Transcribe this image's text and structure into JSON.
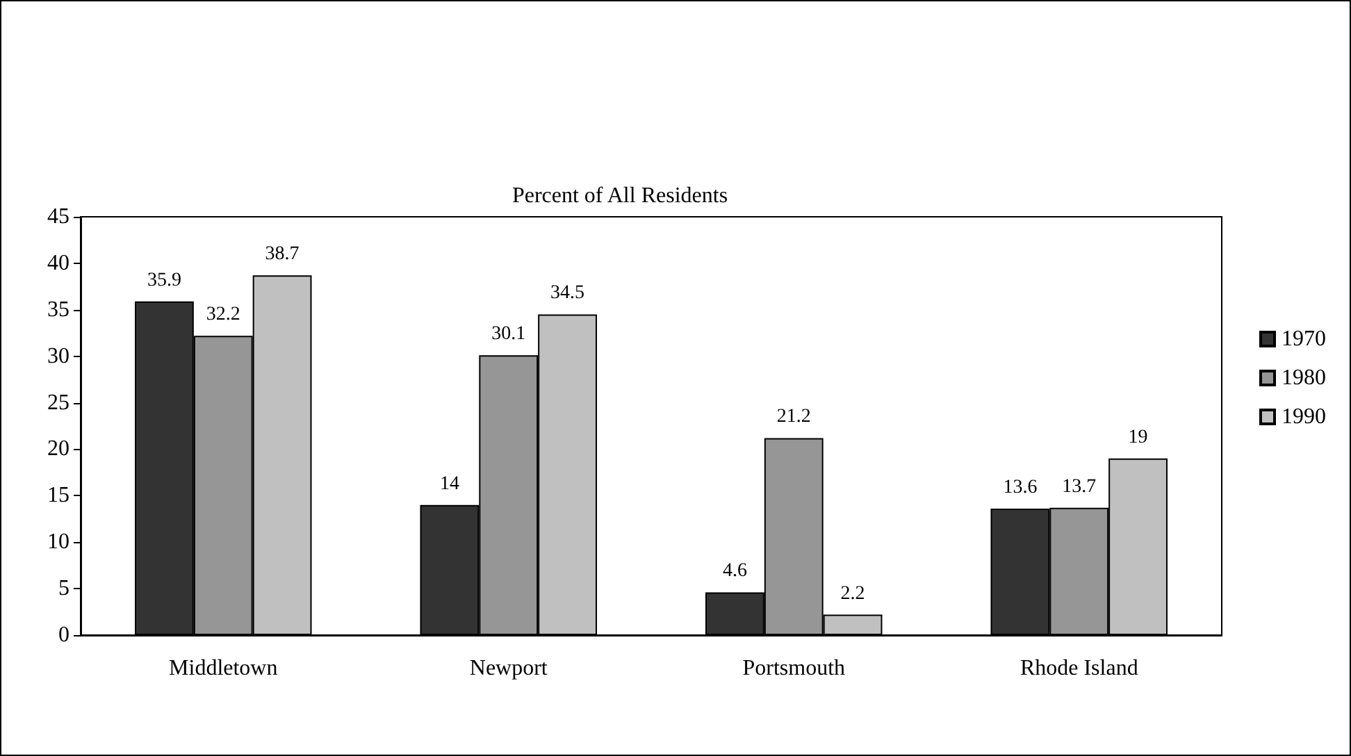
{
  "chart_data": {
    "type": "bar",
    "title": "Percent of All Residents",
    "categories": [
      "Middletown",
      "Newport",
      "Portsmouth",
      "Rhode Island"
    ],
    "series": [
      {
        "name": "1970",
        "color": "#333333",
        "values": [
          35.9,
          14,
          4.6,
          13.6
        ]
      },
      {
        "name": "1980",
        "color": "#969696",
        "values": [
          32.2,
          30.1,
          21.2,
          13.7
        ]
      },
      {
        "name": "1990",
        "color": "#c0c0c0",
        "values": [
          38.7,
          34.5,
          2.2,
          19
        ]
      }
    ],
    "ylim": [
      0,
      45
    ],
    "yticks": [
      0,
      5,
      10,
      15,
      20,
      25,
      30,
      35,
      40,
      45
    ],
    "data_labels": true,
    "grid": false,
    "legend": "right"
  }
}
